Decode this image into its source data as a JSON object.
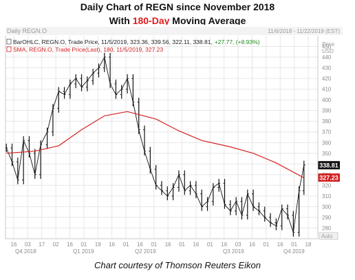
{
  "header": {
    "title_line1": "Daily Chart of REGN since November 2018",
    "title_line2_pre": "With ",
    "title_line2_hl": "180-Day",
    "title_line2_post": " Moving Average"
  },
  "panel": {
    "name": "Daily REGN.O",
    "date_range": "11/6/2018 - 11/22/2019 (EST)",
    "price_unit": "Price\nUSD",
    "auto_label": "Auto"
  },
  "legend": {
    "bar_text": "BarOHLC, REGN.O, Trade Price, 11/5/2019, 323.36, 339.56, 322.11, 338.81,",
    "bar_change": "+27.77, (+8.93%)",
    "sma_text": "SMA, REGN.O, Trade Price(Last), 180, 11/5/2019, 327.23"
  },
  "colors": {
    "bars": "#111111",
    "sma": "#d42020",
    "last_price_bg": "#111111",
    "sma_price_bg": "#d42020",
    "grid": "#e6e6e6"
  },
  "credit": "Chart courtesy of Thomson Reuters Eikon",
  "chart_data": {
    "type": "line",
    "title": "Daily Chart of REGN since November 2018",
    "ylim": [
      270,
      460
    ],
    "yticks": [
      280,
      290,
      300,
      310,
      320,
      330,
      340,
      350,
      360,
      370,
      380,
      390,
      400,
      410,
      420,
      430,
      440,
      450
    ],
    "last_price": "338.81",
    "sma_last": "327.23",
    "x_ticks": [
      "16",
      "03",
      "17",
      "02",
      "16",
      "01",
      "19",
      "16",
      "01",
      "16",
      "01",
      "16",
      "01",
      "16",
      "01",
      "16",
      "03",
      "16",
      "01",
      "16",
      "01",
      "18"
    ],
    "quarters": [
      "Q4 2018",
      "Q1 2019",
      "Q2 2019",
      "Q3 2019",
      "Q4 2019"
    ],
    "series": [
      {
        "name": "BarOHLC, REGN.O",
        "x": [
          "2018-11-06",
          "2018-11-13",
          "2018-11-20",
          "2018-11-27",
          "2018-12-04",
          "2018-12-11",
          "2018-12-18",
          "2018-12-26",
          "2019-01-02",
          "2019-01-09",
          "2019-01-16",
          "2019-01-23",
          "2019-01-30",
          "2019-02-06",
          "2019-02-13",
          "2019-02-20",
          "2019-02-27",
          "2019-03-06",
          "2019-03-13",
          "2019-03-20",
          "2019-03-27",
          "2019-04-03",
          "2019-04-10",
          "2019-04-17",
          "2019-04-24",
          "2019-05-01",
          "2019-05-08",
          "2019-05-15",
          "2019-05-22",
          "2019-05-29",
          "2019-06-05",
          "2019-06-12",
          "2019-06-19",
          "2019-06-26",
          "2019-07-03",
          "2019-07-10",
          "2019-07-17",
          "2019-07-24",
          "2019-07-31",
          "2019-08-07",
          "2019-08-14",
          "2019-08-21",
          "2019-08-28",
          "2019-09-04",
          "2019-09-11",
          "2019-09-18",
          "2019-09-25",
          "2019-10-02",
          "2019-10-09",
          "2019-10-16",
          "2019-10-23",
          "2019-10-30",
          "2019-11-05"
        ],
        "y": [
          355,
          342,
          325,
          362,
          350,
          330,
          358,
          370,
          392,
          408,
          405,
          415,
          420,
          412,
          418,
          425,
          430,
          440,
          415,
          405,
          410,
          420,
          398,
          372,
          352,
          335,
          320,
          315,
          310,
          318,
          330,
          315,
          320,
          312,
          300,
          305,
          318,
          322,
          302,
          296,
          305,
          292,
          312,
          300,
          296,
          290,
          285,
          282,
          298,
          292,
          276,
          315,
          339
        ]
      },
      {
        "name": "SMA, REGN.O, Trade Price(Last), 180",
        "x": [
          "2018-11-06",
          "2018-12-11",
          "2019-01-09",
          "2019-02-06",
          "2019-03-06",
          "2019-04-03",
          "2019-05-08",
          "2019-06-05",
          "2019-07-03",
          "2019-08-07",
          "2019-09-04",
          "2019-10-02",
          "2019-11-05"
        ],
        "y": [
          350,
          352,
          357,
          372,
          385,
          389,
          382,
          371,
          362,
          356,
          350,
          341,
          327
        ]
      }
    ]
  }
}
